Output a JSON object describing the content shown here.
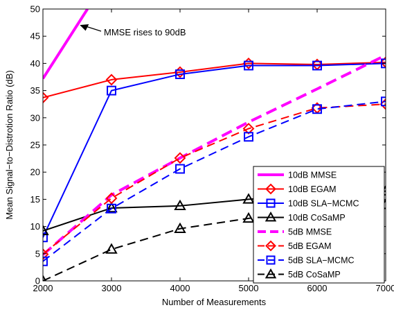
{
  "chart_data": {
    "type": "line",
    "title": "",
    "xlabel": "Number of Measurements",
    "ylabel": "Mean Signal−to−Distrotion Ratio (dB)",
    "xlim": [
      2000,
      7000
    ],
    "ylim": [
      0,
      50
    ],
    "x_ticks": [
      "2000",
      "3000",
      "4000",
      "5000",
      "6000",
      "7000"
    ],
    "y_ticks": [
      "0",
      "5",
      "10",
      "15",
      "20",
      "25",
      "30",
      "35",
      "40",
      "45",
      "50"
    ],
    "grid": false,
    "legend_position": "bottom-right",
    "annotation": {
      "text": "MMSE rises to 90dB",
      "arrow_to": [
        2550,
        47
      ]
    },
    "series": [
      {
        "name": "10dB MMSE",
        "color": "#ff00ff",
        "style": "solid",
        "marker": "none",
        "line_width": 4,
        "x": [
          2000,
          2650
        ],
        "y": [
          37.2,
          50
        ]
      },
      {
        "name": "10dB EGAM",
        "color": "#ff0000",
        "style": "solid",
        "marker": "diamond",
        "line_width": 2,
        "x": [
          2000,
          3000,
          4000,
          5000,
          6000,
          7000
        ],
        "y": [
          33.7,
          37.0,
          38.4,
          40.0,
          39.8,
          40.2
        ]
      },
      {
        "name": "10dB SLA−MCMC",
        "color": "#0000ff",
        "style": "solid",
        "marker": "square",
        "line_width": 2,
        "x": [
          2000,
          3000,
          4000,
          5000,
          6000,
          7000
        ],
        "y": [
          8.0,
          35.0,
          38.0,
          39.6,
          39.6,
          40.0
        ]
      },
      {
        "name": "10dB CoSaMP",
        "color": "#000000",
        "style": "solid",
        "marker": "triangle",
        "line_width": 2,
        "x": [
          2000,
          3000,
          4000,
          5000,
          6000,
          7000
        ],
        "y": [
          9.2,
          13.4,
          13.8,
          15.0,
          16.0,
          16.5
        ]
      },
      {
        "name": "5dB MMSE",
        "color": "#ff00ff",
        "style": "dashed",
        "marker": "none",
        "line_width": 4,
        "x": [
          2000,
          3000,
          4000,
          5000,
          6000,
          7000
        ],
        "y": [
          4.8,
          15.8,
          22.6,
          29.2,
          35.3,
          41.5
        ]
      },
      {
        "name": "5dB EGAM",
        "color": "#ff0000",
        "style": "dashed",
        "marker": "diamond",
        "line_width": 2,
        "x": [
          2000,
          3000,
          4000,
          5000,
          6000,
          7000
        ],
        "y": [
          4.9,
          15.2,
          22.6,
          28.0,
          31.8,
          32.5
        ]
      },
      {
        "name": "5dB SLA−MCMC",
        "color": "#0000ff",
        "style": "dashed",
        "marker": "square",
        "line_width": 2,
        "x": [
          2000,
          3000,
          4000,
          5000,
          6000,
          7000
        ],
        "y": [
          3.6,
          13.3,
          20.6,
          26.5,
          31.6,
          33.0
        ]
      },
      {
        "name": "5dB CoSaMP",
        "color": "#000000",
        "style": "dashed",
        "marker": "triangle",
        "line_width": 2,
        "x": [
          2000,
          3000,
          4000,
          5000,
          6000,
          7000
        ],
        "y": [
          0.0,
          5.8,
          9.6,
          11.5,
          13.0,
          14.0
        ]
      }
    ]
  }
}
